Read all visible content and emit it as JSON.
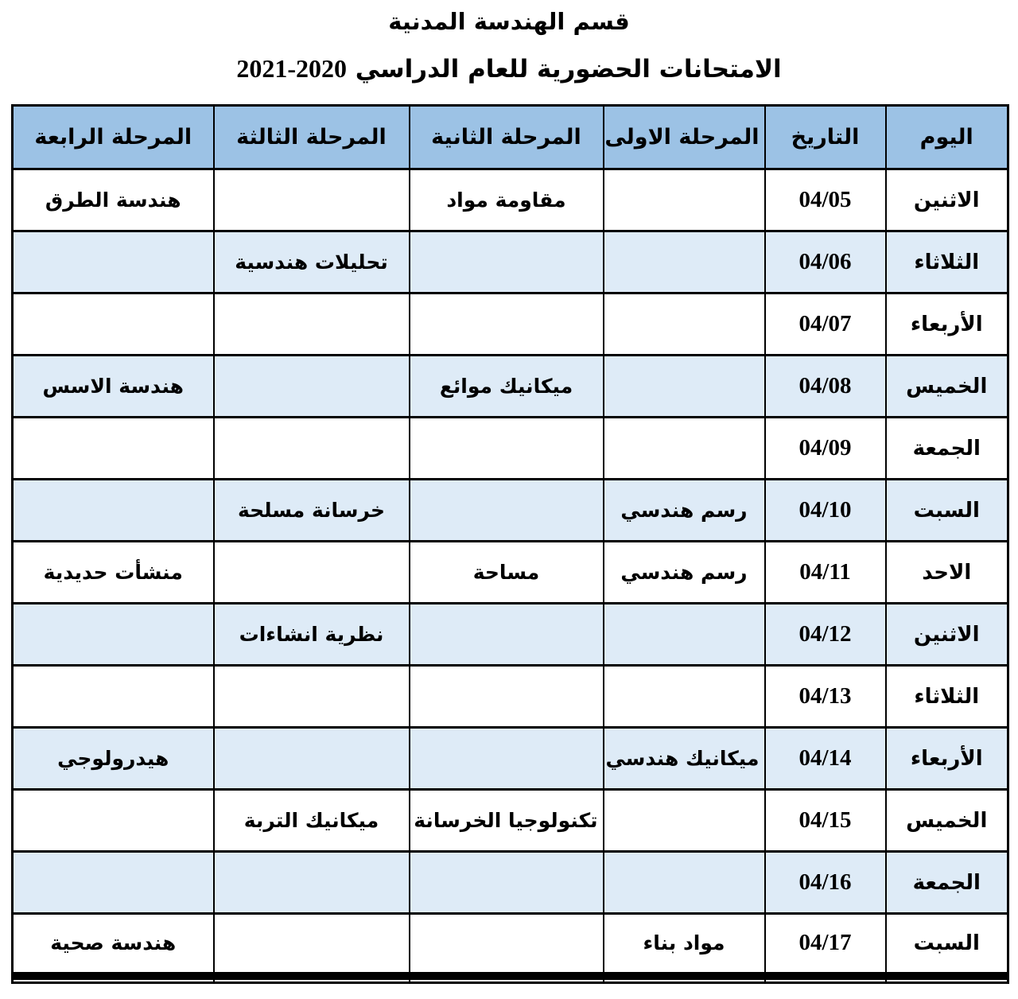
{
  "titles": {
    "department": "قسم الهندسة المدنية",
    "exam_text": "الامتحانات الحضورية للعام الدراسي",
    "exam_years": "2021-2020"
  },
  "table": {
    "headers": [
      "اليوم",
      "التاريخ",
      "المرحلة الاولى",
      "المرحلة الثانية",
      "المرحلة الثالثة",
      "المرحلة الرابعة"
    ],
    "column_names": [
      "day",
      "date",
      "stage1",
      "stage2",
      "stage3",
      "stage4"
    ],
    "rows": [
      [
        "الاثنين",
        "04/05",
        "",
        "مقاومة مواد",
        "",
        "هندسة الطرق"
      ],
      [
        "الثلاثاء",
        "04/06",
        "",
        "",
        "تحليلات هندسية",
        ""
      ],
      [
        "الأربعاء",
        "04/07",
        "",
        "",
        "",
        ""
      ],
      [
        "الخميس",
        "04/08",
        "",
        "ميكانيك موائع",
        "",
        "هندسة الاسس"
      ],
      [
        "الجمعة",
        "04/09",
        "",
        "",
        "",
        ""
      ],
      [
        "السبت",
        "04/10",
        "رسم هندسي",
        "",
        "خرسانة مسلحة",
        ""
      ],
      [
        "الاحد",
        "04/11",
        "رسم هندسي",
        "مساحة",
        "",
        "منشأت حديدية"
      ],
      [
        "الاثنين",
        "04/12",
        "",
        "",
        "نظرية انشاءات",
        ""
      ],
      [
        "الثلاثاء",
        "04/13",
        "",
        "",
        "",
        ""
      ],
      [
        "الأربعاء",
        "04/14",
        "ميكانيك هندسي",
        "",
        "",
        "هيدرولوجي"
      ],
      [
        "الخميس",
        "04/15",
        "",
        "تكنولوجيا الخرسانة",
        "ميكانيك التربة",
        ""
      ],
      [
        "الجمعة",
        "04/16",
        "",
        "",
        "",
        ""
      ],
      [
        "السبت",
        "04/17",
        "مواد بناء",
        "",
        "",
        "هندسة صحية"
      ]
    ]
  },
  "colors": {
    "header_bg": "#9CC2E5",
    "alt_row_bg": "#DEEBF7",
    "border": "#000000",
    "text": "#000000"
  }
}
